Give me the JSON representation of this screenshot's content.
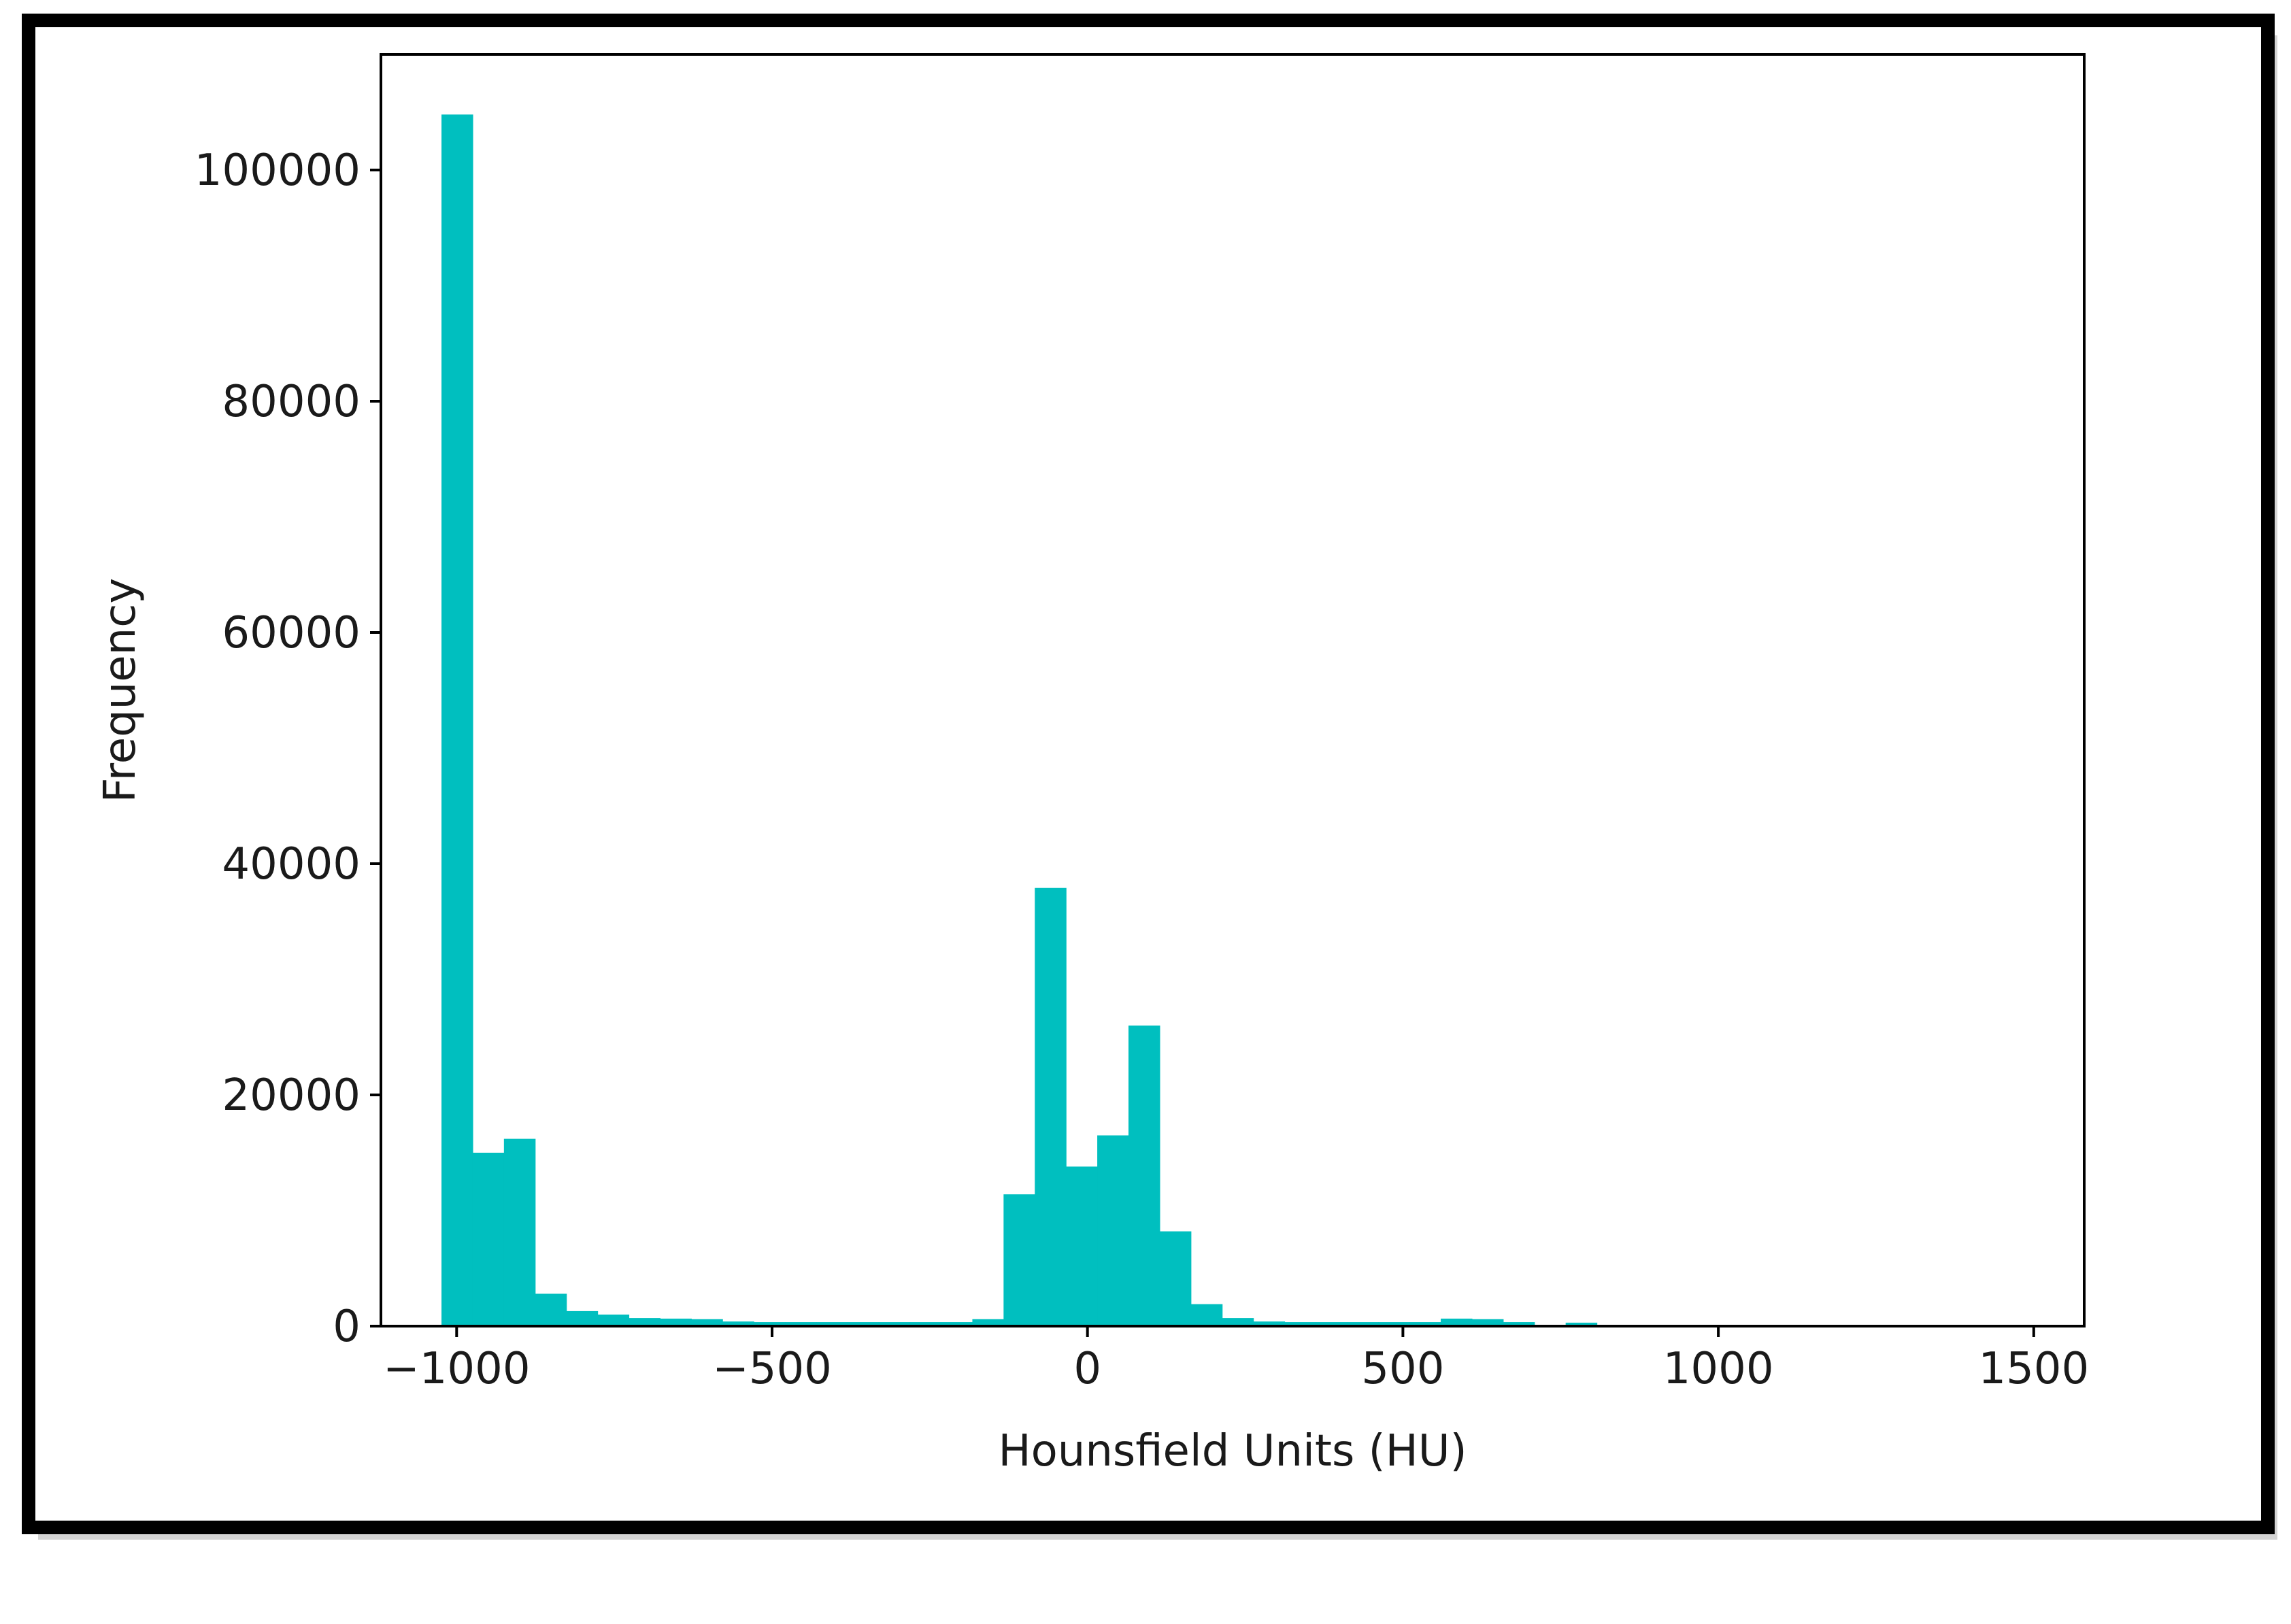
{
  "chart_data": {
    "type": "bar",
    "title": "",
    "xlabel": "Hounsfield Units (HU)",
    "ylabel": "Frequency",
    "xlim": [
      -1120,
      1580
    ],
    "ylim": [
      0,
      110000
    ],
    "grid": false,
    "legend": "none",
    "bar_color": "#00BFBF",
    "bin_width": 49.5,
    "x_ticks": [
      {
        "value": -1000,
        "label": "−1000"
      },
      {
        "value": -500,
        "label": "−500"
      },
      {
        "value": 0,
        "label": "0"
      },
      {
        "value": 500,
        "label": "500"
      },
      {
        "value": 1000,
        "label": "1000"
      },
      {
        "value": 1500,
        "label": "1500"
      }
    ],
    "y_ticks": [
      {
        "value": 0,
        "label": "0"
      },
      {
        "value": 20000,
        "label": "20000"
      },
      {
        "value": 40000,
        "label": "40000"
      },
      {
        "value": 60000,
        "label": "60000"
      },
      {
        "value": 80000,
        "label": "80000"
      },
      {
        "value": 100000,
        "label": "100000"
      }
    ],
    "bins": [
      {
        "x": -1024,
        "count": 104800
      },
      {
        "x": -974.5,
        "count": 15000
      },
      {
        "x": -925,
        "count": 16200
      },
      {
        "x": -875.5,
        "count": 2800
      },
      {
        "x": -826,
        "count": 1300
      },
      {
        "x": -776.5,
        "count": 1000
      },
      {
        "x": -727,
        "count": 700
      },
      {
        "x": -677.5,
        "count": 650
      },
      {
        "x": -628,
        "count": 600
      },
      {
        "x": -578.5,
        "count": 400
      },
      {
        "x": -529,
        "count": 350
      },
      {
        "x": -479.5,
        "count": 350
      },
      {
        "x": -430,
        "count": 350
      },
      {
        "x": -380.5,
        "count": 350
      },
      {
        "x": -331,
        "count": 350
      },
      {
        "x": -281.5,
        "count": 350
      },
      {
        "x": -232,
        "count": 350
      },
      {
        "x": -182.5,
        "count": 600
      },
      {
        "x": -133,
        "count": 11400
      },
      {
        "x": -83.5,
        "count": 37900
      },
      {
        "x": -34,
        "count": 13800
      },
      {
        "x": 15.5,
        "count": 16500
      },
      {
        "x": 65,
        "count": 26000
      },
      {
        "x": 114.5,
        "count": 8200
      },
      {
        "x": 164,
        "count": 1900
      },
      {
        "x": 213.5,
        "count": 700
      },
      {
        "x": 263,
        "count": 400
      },
      {
        "x": 312.5,
        "count": 350
      },
      {
        "x": 362,
        "count": 350
      },
      {
        "x": 411.5,
        "count": 350
      },
      {
        "x": 461,
        "count": 350
      },
      {
        "x": 510.5,
        "count": 350
      },
      {
        "x": 560,
        "count": 650
      },
      {
        "x": 609.5,
        "count": 600
      },
      {
        "x": 659,
        "count": 350
      },
      {
        "x": 708.5,
        "count": 0
      },
      {
        "x": 758,
        "count": 300
      }
    ]
  }
}
